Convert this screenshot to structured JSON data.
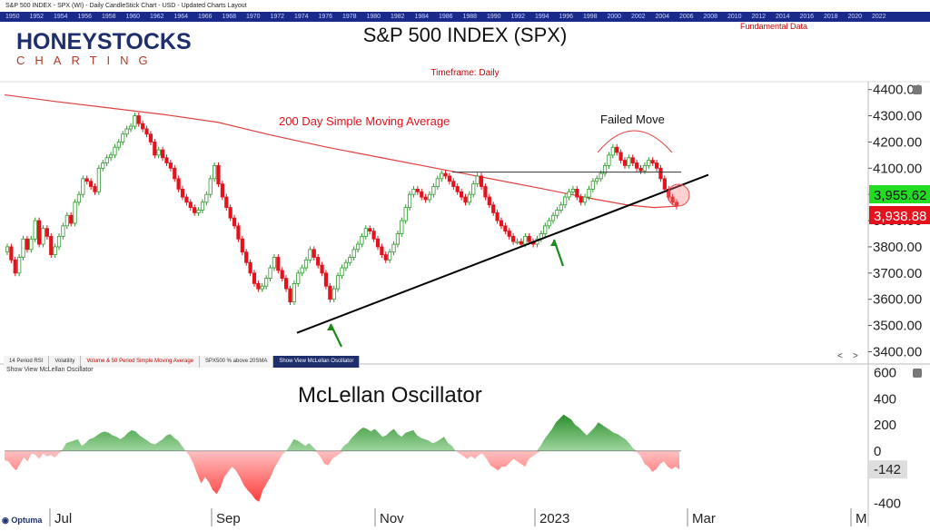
{
  "window_title": "S&P 500 INDEX - SPX (WI) - Daily CandleStick Chart - USD - Updated Charts Layout",
  "year_strip": [
    "1950",
    "1952",
    "1954",
    "1956",
    "1958",
    "1960",
    "1962",
    "1964",
    "1966",
    "1968",
    "1970",
    "1972",
    "1974",
    "1976",
    "1978",
    "1980",
    "1982",
    "1984",
    "1986",
    "1988",
    "1990",
    "1992",
    "1994",
    "1996",
    "1998",
    "2000",
    "2002",
    "2004",
    "2006",
    "2008",
    "2010",
    "2012",
    "2014",
    "2016",
    "2018",
    "2020",
    "2022"
  ],
  "logo": {
    "line1": "HONEYSTOCKS",
    "line2": "CHARTING"
  },
  "fundamental_label": "Fundamental Data",
  "tabs": [
    {
      "label": "14 Period RSI"
    },
    {
      "label": "Volatility"
    },
    {
      "label": "Volume & 50 Period Simple Moving Average"
    },
    {
      "label": "SPX500 % above 20SMA"
    },
    {
      "label": "Show View McLellan Oscillator"
    }
  ],
  "nav": {
    "left": "<",
    "right": ">"
  },
  "lower_panel_label": "Show View McLellan Oscillator",
  "branding": "Optuma",
  "colors": {
    "up": "#2e9a2e",
    "down": "#e3121c",
    "ma": "#e04040",
    "trend": "#000000",
    "osc_pos": "#2d8f2d",
    "osc_neg": "#ff3c3c"
  },
  "chart_data": [
    {
      "type": "candlestick",
      "title": "S&P 500 INDEX (SPX)",
      "subtitle": "Timeframe: Daily",
      "y_ticks": [
        "4400.00",
        "4300.00",
        "4200.00",
        "4100.00",
        "4000.00",
        "3900.00",
        "3800.00",
        "3700.00",
        "3600.00",
        "3500.00",
        "3400.00"
      ],
      "ylim": [
        3360,
        4430
      ],
      "x_ticks": [
        "Jul",
        "Sep",
        "Nov",
        "2023",
        "Mar",
        "M"
      ],
      "x_tick_pos": [
        60,
        238,
        418,
        594,
        762,
        942
      ],
      "price_labels": [
        {
          "value": "3,955.62",
          "color": "#22dd22"
        },
        {
          "value": "3,938.88",
          "color": "#e3121c"
        }
      ],
      "annotations": [
        "200 Day Simple Moving Average",
        "Failed Move"
      ],
      "ma200": [
        [
          5,
          4380
        ],
        [
          60,
          4355
        ],
        [
          120,
          4330
        ],
        [
          180,
          4305
        ],
        [
          240,
          4275
        ],
        [
          300,
          4225
        ],
        [
          360,
          4180
        ],
        [
          420,
          4140
        ],
        [
          480,
          4100
        ],
        [
          540,
          4060
        ],
        [
          600,
          4020
        ],
        [
          650,
          3985
        ],
        [
          690,
          3960
        ],
        [
          720,
          3950
        ],
        [
          745,
          3955
        ]
      ],
      "trendline": [
        [
          3472,
          4075
        ]
      ],
      "resistance": 4085,
      "closes": [
        3800,
        3750,
        3700,
        3760,
        3830,
        3790,
        3830,
        3900,
        3810,
        3870,
        3840,
        3770,
        3800,
        3840,
        3880,
        3920,
        3890,
        3970,
        4000,
        4060,
        4050,
        4030,
        4010,
        4100,
        4120,
        4140,
        4150,
        4180,
        4200,
        4230,
        4250,
        4260,
        4300,
        4270,
        4250,
        4230,
        4200,
        4150,
        4170,
        4140,
        4120,
        4100,
        4060,
        4020,
        3990,
        3970,
        3950,
        3930,
        3940,
        3970,
        4000,
        4060,
        4110,
        4040,
        3990,
        3950,
        3910,
        3880,
        3830,
        3780,
        3740,
        3700,
        3660,
        3640,
        3650,
        3680,
        3720,
        3760,
        3710,
        3680,
        3640,
        3590,
        3660,
        3700,
        3720,
        3750,
        3790,
        3760,
        3730,
        3700,
        3650,
        3600,
        3640,
        3690,
        3720,
        3740,
        3760,
        3790,
        3810,
        3840,
        3870,
        3860,
        3830,
        3800,
        3770,
        3750,
        3780,
        3810,
        3850,
        3900,
        3950,
        4000,
        4020,
        4010,
        3990,
        3980,
        4000,
        4030,
        4060,
        4080,
        4070,
        4050,
        4030,
        4010,
        3990,
        3970,
        4000,
        4040,
        4070,
        4030,
        3990,
        3960,
        3930,
        3900,
        3880,
        3860,
        3840,
        3820,
        3820,
        3810,
        3840,
        3820,
        3810,
        3830,
        3850,
        3880,
        3900,
        3920,
        3940,
        3960,
        3990,
        4010,
        4020,
        3990,
        3970,
        3990,
        4020,
        4050,
        4060,
        4080,
        4110,
        4150,
        4180,
        4160,
        4130,
        4110,
        4140,
        4120,
        4100,
        4090,
        4110,
        4130,
        4120,
        4100,
        4060,
        4020,
        3990,
        3970,
        3955
      ],
      "osc_values": [
        -70,
        -80,
        -120,
        -150,
        -100,
        -50,
        -80,
        -20,
        -30,
        -60,
        -20,
        -40,
        -30,
        -50,
        -20,
        10,
        60,
        70,
        80,
        90,
        40,
        60,
        90,
        100,
        120,
        140,
        150,
        140,
        120,
        110,
        90,
        110,
        140,
        160,
        150,
        120,
        100,
        80,
        60,
        50,
        70,
        90,
        120,
        130,
        100,
        80,
        40,
        0,
        -40,
        -100,
        -180,
        -250,
        -200,
        -240,
        -300,
        -330,
        -280,
        -200,
        -160,
        -120,
        -150,
        -200,
        -260,
        -300,
        -330,
        -370,
        -390,
        -300,
        -250,
        -200,
        -130,
        -80,
        -30,
        0,
        40,
        90,
        80,
        60,
        40,
        60,
        30,
        -10,
        -50,
        -100,
        -110,
        -60,
        -40,
        -20,
        40,
        60,
        100,
        130,
        160,
        180,
        170,
        150,
        170,
        140,
        110,
        120,
        150,
        170,
        130,
        110,
        140,
        150,
        160,
        120,
        100,
        90,
        80,
        60,
        70,
        90,
        110,
        60,
        40,
        0,
        -20,
        -40,
        -60,
        -40,
        -60,
        -30,
        -20,
        -60,
        -110,
        -130,
        -150,
        -120,
        -120,
        -90,
        -60,
        -80,
        -100,
        -120,
        -60,
        -40,
        -20,
        40,
        90,
        130,
        170,
        220,
        250,
        280,
        260,
        240,
        200,
        180,
        150,
        120,
        150,
        180,
        220,
        200,
        180,
        160,
        140,
        130,
        110,
        90,
        60,
        20,
        -10,
        -40,
        -100,
        -120,
        -160,
        -140,
        -100,
        -80,
        -120,
        -140,
        -120,
        -142
      ],
      "osc_ticks": [
        "600",
        "400",
        "200",
        "0",
        "-142",
        "-400"
      ],
      "osc_ylim": [
        -440,
        640
      ]
    }
  ]
}
